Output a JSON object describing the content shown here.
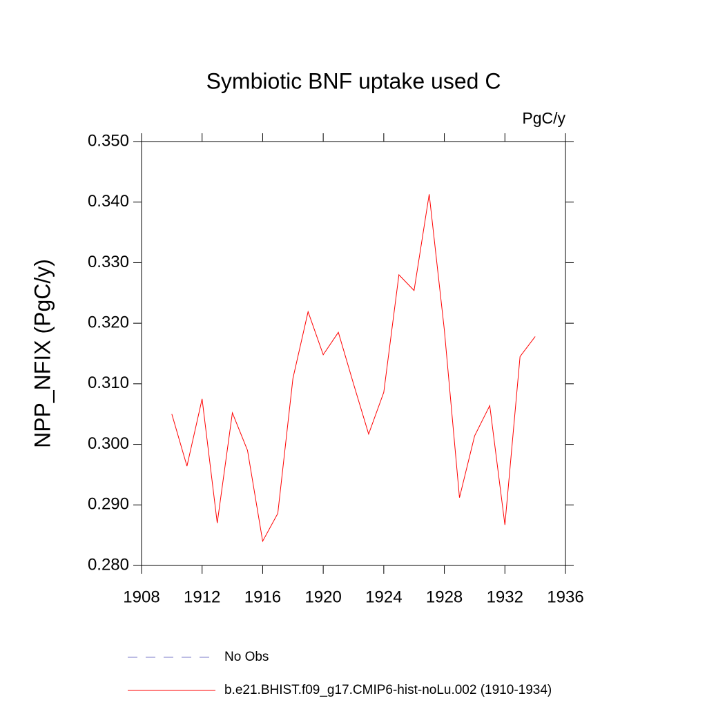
{
  "chart_data": {
    "type": "line",
    "title": "Symbiotic BNF uptake used C",
    "units": "PgC/y",
    "y_label": "NPP_NFIX  (PgC/y)",
    "x": [
      1910,
      1911,
      1912,
      1913,
      1914,
      1915,
      1916,
      1917,
      1918,
      1919,
      1920,
      1921,
      1922,
      1923,
      1924,
      1925,
      1926,
      1927,
      1928,
      1929,
      1930,
      1931,
      1932,
      1933,
      1934
    ],
    "series": [
      {
        "name": "No Obs",
        "color": "#7a7ac8",
        "dashed": true,
        "values": [
          null,
          null,
          null,
          null,
          null,
          null,
          null,
          null,
          null,
          null,
          null,
          null,
          null,
          null,
          null,
          null,
          null,
          null,
          null,
          null,
          null,
          null,
          null,
          null,
          null
        ]
      },
      {
        "name": "b.e21.BHIST.f09_g17.CMIP6-hist-noLu.002 (1910-1934)",
        "color": "#ff0000",
        "dashed": false,
        "values": [
          0.305,
          0.2964,
          0.3075,
          0.287,
          0.3052,
          0.299,
          0.284,
          0.2886,
          0.3109,
          0.3219,
          0.3148,
          0.3185,
          0.31,
          0.3017,
          0.3086,
          0.328,
          0.3254,
          0.3413,
          0.3189,
          0.2912,
          0.3014,
          0.3064,
          0.2867,
          0.3145,
          0.3178
        ]
      }
    ],
    "xlim": [
      1908,
      1936
    ],
    "xticks": [
      1908,
      1912,
      1916,
      1920,
      1924,
      1928,
      1932,
      1936
    ],
    "ylim": [
      0.28,
      0.35
    ],
    "yticks": [
      {
        "value": 0.28,
        "label": "0.280"
      },
      {
        "value": 0.29,
        "label": "0.290"
      },
      {
        "value": 0.3,
        "label": "0.300"
      },
      {
        "value": 0.31,
        "label": "0.310"
      },
      {
        "value": 0.32,
        "label": "0.320"
      },
      {
        "value": 0.33,
        "label": "0.330"
      },
      {
        "value": 0.34,
        "label": "0.340"
      },
      {
        "value": 0.35,
        "label": "0.350"
      }
    ],
    "grid": false
  }
}
